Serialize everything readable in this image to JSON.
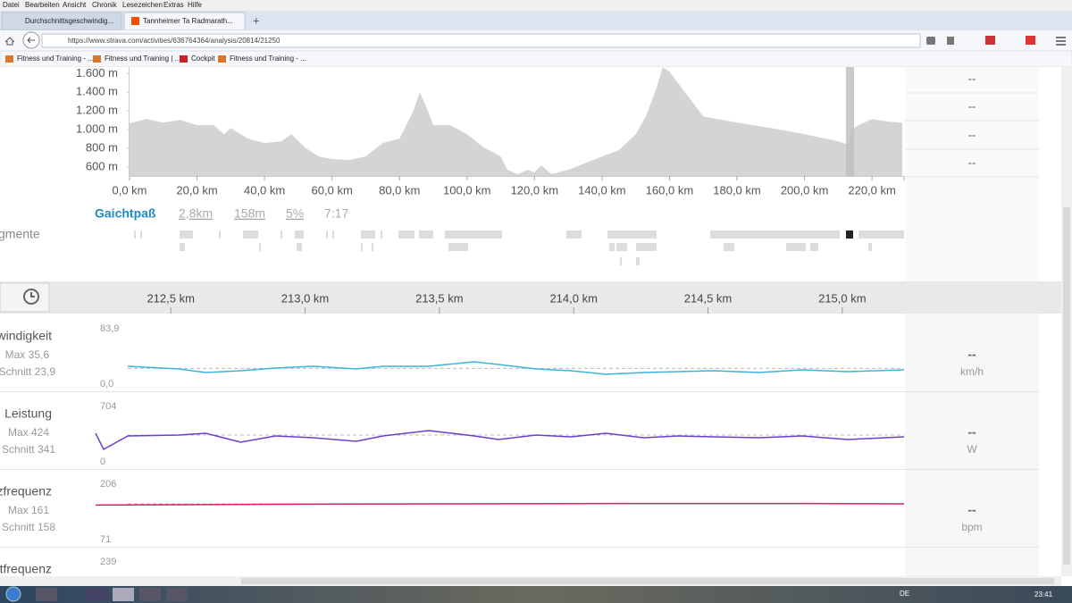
{
  "browser": {
    "menu": [
      "Datei",
      "Bearbeiten",
      "Ansicht",
      "Chronik",
      "Lesezeichen",
      "Extras",
      "Hilfe"
    ],
    "tabs": [
      "Durchschnittsgeschwindig...",
      "Tannheimer Ta Radmarath..."
    ],
    "url": "https://www.strava.com/activities/636764364/analysis/20814/21250",
    "bookmarks": [
      "Fitness und Training - ...",
      "Fitness und Training | ...",
      "Cockpit",
      "Fitness und Training - ..."
    ]
  },
  "elevation": {
    "x": [
      0,
      5,
      10,
      15,
      20,
      25,
      28,
      30,
      35,
      40,
      45,
      48,
      52,
      56,
      60,
      65,
      70,
      75,
      80,
      84,
      86,
      88,
      90,
      95,
      100,
      105,
      110,
      112,
      115,
      118,
      120,
      122,
      125,
      130,
      140,
      145,
      150,
      153,
      156,
      158,
      160,
      165,
      170,
      180,
      190,
      200,
      210,
      213,
      214,
      216,
      220,
      225,
      229
    ],
    "values": [
      1067,
      1114,
      1076,
      1105,
      1048,
      1048,
      952,
      1019,
      905,
      857,
      876,
      952,
      810,
      714,
      686,
      676,
      714,
      857,
      905,
      1190,
      1400,
      1238,
      1048,
      1048,
      952,
      810,
      714,
      571,
      524,
      571,
      543,
      619,
      524,
      571,
      714,
      781,
      952,
      1143,
      1429,
      1667,
      1619,
      1381,
      1143,
      1076,
      1019,
      952,
      876,
      838,
      1000,
      1048,
      1114,
      1086,
      1076
    ],
    "xlim": [
      0,
      229.5
    ],
    "ylim": [
      505,
      1670
    ],
    "xticks": [
      {
        "value": 0,
        "label": "0,0 km"
      },
      {
        "value": 20,
        "label": "20,0 km"
      },
      {
        "value": 40,
        "label": "40,0 km"
      },
      {
        "value": 60,
        "label": "60,0 km"
      },
      {
        "value": 80,
        "label": "80,0 km"
      },
      {
        "value": 100,
        "label": "100,0 km"
      },
      {
        "value": 120,
        "label": "120,0 km"
      },
      {
        "value": 140,
        "label": "140,0 km"
      },
      {
        "value": 160,
        "label": "160,0 km"
      },
      {
        "value": 180,
        "label": "180,0 km"
      },
      {
        "value": 200,
        "label": "200,0 km"
      },
      {
        "value": 220,
        "label": "220,0 km"
      }
    ],
    "yticks": [
      {
        "value": 600,
        "label": "600 m"
      },
      {
        "value": 800,
        "label": "800 m"
      },
      {
        "value": 1000,
        "label": "1.000 m"
      },
      {
        "value": 1200,
        "label": "1.200 m"
      },
      {
        "value": 1400,
        "label": "1.400 m"
      },
      {
        "value": 1600,
        "label": "1.600 m"
      }
    ],
    "right_values": [
      "--",
      "--",
      "--",
      "--"
    ]
  },
  "segment": {
    "name": "Gaichtpaß",
    "distance": "2,8km",
    "elevation": "158m",
    "grade": "5%",
    "time": "7:17"
  },
  "segments_label": "gmente",
  "analysis": {
    "xlim": [
      212.22,
      215.23
    ],
    "xticks": [
      {
        "value": 212.5,
        "label": "212,5 km"
      },
      {
        "value": 213.0,
        "label": "213,0 km"
      },
      {
        "value": 213.5,
        "label": "213,5 km"
      },
      {
        "value": 214.0,
        "label": "214,0 km"
      },
      {
        "value": 214.5,
        "label": "214,5 km"
      },
      {
        "value": 215.0,
        "label": "215,0 km"
      }
    ],
    "streams": [
      {
        "name": "schwindigkeit",
        "max": "Max 35,6",
        "avg": "Schnitt 23,9",
        "average": 23.9,
        "current": "--",
        "unit": "km/h",
        "color": "#3cb4d8",
        "ylim": [
          {
            "value": 0,
            "label": "0,0"
          },
          {
            "value": 83.9,
            "label": "83,9"
          }
        ],
        "x": [
          212.34,
          212.53,
          212.63,
          212.76,
          212.89,
          213.03,
          213.19,
          213.29,
          213.46,
          213.63,
          213.72,
          213.86,
          213.99,
          214.12,
          214.26,
          214.39,
          214.52,
          214.69,
          214.85,
          215.02,
          215.23
        ],
        "values": [
          27.1,
          23.0,
          17.6,
          20.3,
          24.4,
          27.1,
          23.0,
          27.1,
          27.1,
          33.8,
          29.8,
          23.0,
          20.3,
          14.9,
          17.6,
          18.9,
          20.3,
          17.6,
          21.6,
          18.9,
          21.6
        ]
      },
      {
        "name": "Leistung",
        "max": "Max 424",
        "avg": "Schnitt 341",
        "average": 341,
        "current": "--",
        "unit": "W",
        "color": "#6a3fd0",
        "ylim": [
          0,
          704
        ],
        "x": [
          212.22,
          212.25,
          212.34,
          212.53,
          212.63,
          212.76,
          212.89,
          213.03,
          213.19,
          213.29,
          213.46,
          213.63,
          213.72,
          213.86,
          213.99,
          214.12,
          214.26,
          214.39,
          214.52,
          214.69,
          214.85,
          215.02,
          215.23
        ],
        "values": [
          363,
          159,
          329,
          341,
          363,
          250,
          329,
          307,
          261,
          329,
          397,
          329,
          284,
          341,
          318,
          363,
          307,
          329,
          318,
          307,
          329,
          284,
          318
        ]
      },
      {
        "name": "erzfrequenz",
        "max": "Max 161",
        "avg": "Schnitt 158",
        "average": 158,
        "current": "--",
        "unit": "bpm",
        "color": "#d0245c",
        "ylim": [
          71,
          206
        ],
        "x": [
          212.22,
          212.86,
          213.53,
          214.19,
          214.85,
          215.23
        ],
        "values": [
          155,
          157,
          158,
          159,
          159,
          158
        ]
      },
      {
        "name": "rittfrequenz",
        "ymax": 239
      }
    ]
  },
  "taskbar": {
    "language": "DE",
    "clock": "23:41"
  }
}
